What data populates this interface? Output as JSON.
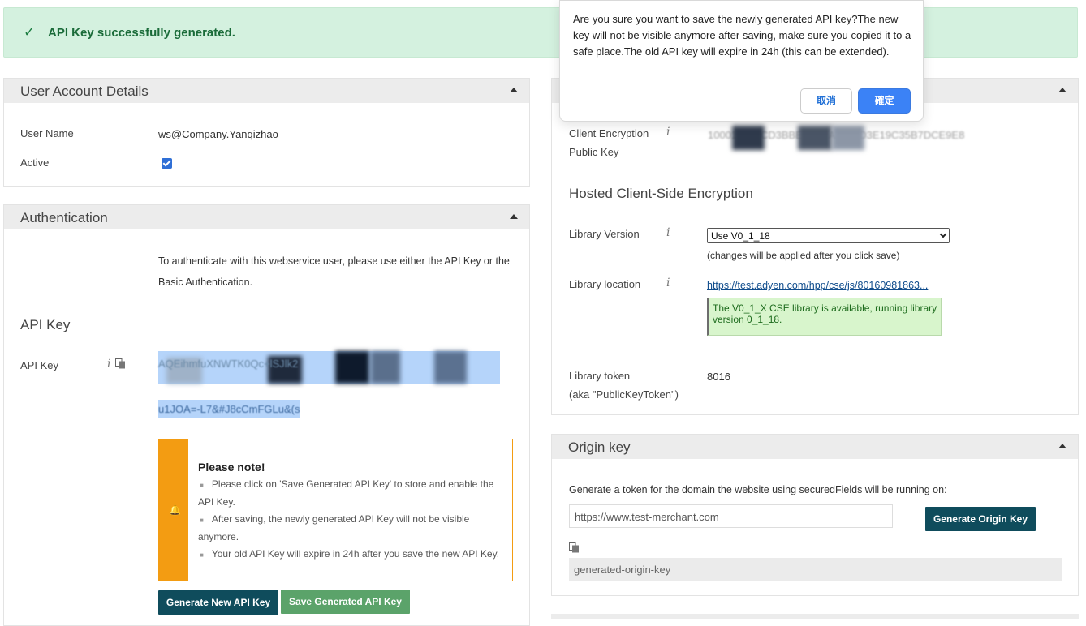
{
  "banner": {
    "message": "API Key successfully generated."
  },
  "user_account": {
    "title": "User Account Details",
    "user_name_label": "User Name",
    "user_name_value": "ws@Company.Yanqizhao",
    "active_label": "Active",
    "active_checked": true
  },
  "auth": {
    "title": "Authentication",
    "description_line1": "To authenticate with this webservice user, please use either the API Key or the",
    "description_line2": "Basic Authentication.",
    "api_key_heading": "API Key",
    "api_key_label": "API Key",
    "api_key_line1": "AQEihmfuXNWTK0Qc+lSJlk2",
    "api_key_line2": "u1JOA=-L7&#J8cCmFGLu&(s",
    "note": {
      "title": "Please note!",
      "items": [
        "Please click on 'Save Generated API Key' to store and enable the API Key.",
        "After saving, the newly generated API Key will not be visible anymore.",
        "Your old API Key will expire in 24h after you save the new API Key."
      ]
    },
    "generate_button": "Generate New API Key",
    "save_button": "Save Generated API Key"
  },
  "cse": {
    "client_key_label_1": "Client Encryption",
    "client_key_label_2": "Public Key",
    "client_key_value": "10001|CA9CD3BBE5EA1A2755D3E19C35B7DCE9E8",
    "hosted_heading": "Hosted Client-Side Encryption",
    "library_version_label": "Library Version",
    "library_version_selected": "Use V0_1_18",
    "library_version_hint": "(changes will be applied after you click save)",
    "library_location_label": "Library location",
    "library_location_link": "https://test.adyen.com/hpp/cse/js/80160981863...",
    "library_status": "The V0_1_X CSE library is available, running library version 0_1_18.",
    "library_token_label_1": "Library token",
    "library_token_label_2": "(aka \"PublicKeyToken\")",
    "library_token_value": "8016"
  },
  "origin": {
    "title": "Origin key",
    "description": "Generate a token for the domain the website using securedFields will be running on:",
    "domain_value": "https://www.test-merchant.com",
    "generate_button": "Generate Origin Key",
    "generated_value": "generated-origin-key"
  },
  "dialog": {
    "message": "Are you sure you want to save the newly generated API key?The new key will not be visible anymore after saving, make sure you copied it to a safe place.The old API key will expire in 24h (this can be extended).",
    "cancel": "取消",
    "confirm": "確定"
  },
  "colors": {
    "success_bg": "#d4f1df",
    "dark_teal": "#0f4c5c",
    "green_button": "#5ba36a",
    "note_orange": "#f39c12",
    "primary_blue": "#3b82f6"
  }
}
